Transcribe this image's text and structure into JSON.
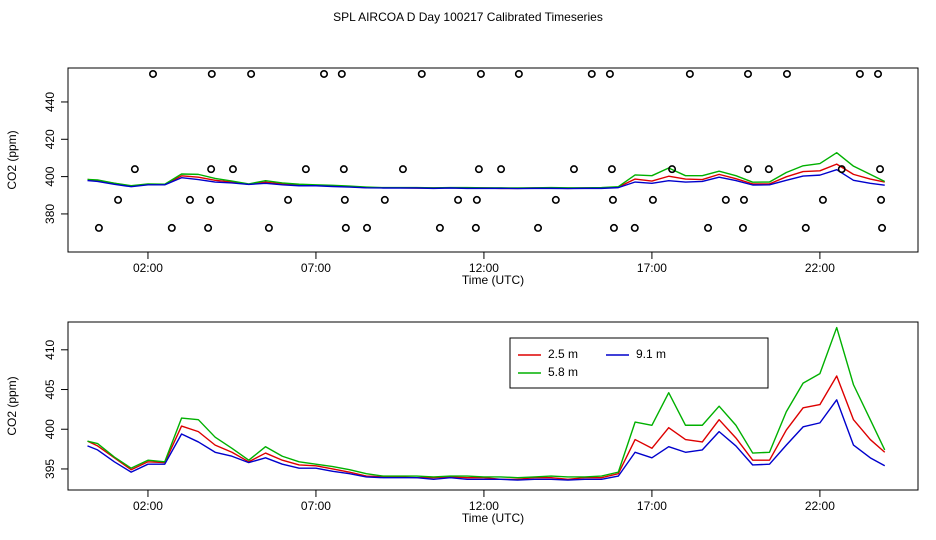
{
  "chart_data": [
    {
      "type": "line",
      "title": "SPL AIRCOA D  Day 100217  Calibrated Timeseries",
      "x_label": "Time (UTC)",
      "y_label": "CO2 (ppm)",
      "xlim": [
        -0.38,
        24.92
      ],
      "ylim": [
        359.6,
        458.2
      ],
      "xticks": [
        {
          "value": 2,
          "label": "02:00"
        },
        {
          "value": 7,
          "label": "07:00"
        },
        {
          "value": 12,
          "label": "12:00"
        },
        {
          "value": 17,
          "label": "17:00"
        },
        {
          "value": 22,
          "label": "22:00"
        }
      ],
      "yticks": [
        380,
        400,
        420,
        440
      ],
      "x": [
        0.2,
        0.5,
        1,
        1.5,
        2,
        2.5,
        3,
        3.5,
        4,
        4.5,
        5,
        5.5,
        6,
        6.5,
        7,
        7.5,
        8,
        8.5,
        9,
        9.5,
        10,
        10.5,
        11,
        11.5,
        12,
        12.5,
        13,
        13.5,
        14,
        14.5,
        15,
        15.5,
        16,
        16.5,
        17,
        17.5,
        18,
        18.5,
        19,
        19.5,
        20,
        20.5,
        21,
        21.5,
        22,
        22.5,
        23,
        23.5,
        23.93
      ],
      "series": [
        {
          "color": "#dd0000",
          "values": [
            398.5,
            397.9,
            396.4,
            394.9,
            395.9,
            395.8,
            400.4,
            399.7,
            398.0,
            397.1,
            395.9,
            397.0,
            396.1,
            395.5,
            395.4,
            395.0,
            394.6,
            394.1,
            394.0,
            394.0,
            393.9,
            393.9,
            394.0,
            393.9,
            393.9,
            393.7,
            393.7,
            393.9,
            393.9,
            393.7,
            393.9,
            393.9,
            394.4,
            398.7,
            397.6,
            400.2,
            398.7,
            398.4,
            401.2,
            398.9,
            396.1,
            396.1,
            399.9,
            402.7,
            403.1,
            406.7,
            401.2,
            398.7,
            397.1
          ]
        },
        {
          "color": "#00b000",
          "values": [
            398.5,
            398.2,
            396.5,
            395.1,
            396.1,
            395.9,
            401.4,
            401.2,
            399.0,
            397.6,
            396.1,
            397.8,
            396.6,
            395.9,
            395.6,
            395.3,
            394.9,
            394.4,
            394.1,
            394.1,
            394.1,
            394.0,
            394.1,
            394.1,
            394.0,
            394.0,
            393.9,
            394.0,
            394.1,
            394.0,
            394.0,
            394.1,
            394.6,
            400.9,
            400.5,
            404.6,
            400.5,
            400.5,
            402.9,
            400.5,
            397.0,
            397.1,
            402.2,
            405.8,
            407.0,
            412.8,
            405.6,
            401.2,
            397.4
          ]
        },
        {
          "color": "#0000cc",
          "values": [
            397.9,
            397.4,
            395.9,
            394.6,
            395.6,
            395.6,
            399.4,
            398.4,
            397.1,
            396.6,
            395.8,
            396.4,
            395.6,
            395.1,
            395.1,
            394.7,
            394.4,
            394.0,
            393.9,
            393.9,
            393.9,
            393.7,
            393.9,
            393.7,
            393.7,
            393.7,
            393.6,
            393.7,
            393.7,
            393.6,
            393.7,
            393.7,
            394.1,
            397.1,
            396.4,
            397.8,
            397.1,
            397.4,
            399.7,
            397.9,
            395.5,
            395.6,
            398.0,
            400.3,
            400.8,
            403.7,
            398.0,
            396.4,
            395.4
          ]
        },
        {
          "color": "#000000",
          "marker": "circle",
          "x": [
            2.15,
            3.9,
            5.07,
            7.24,
            7.77,
            10.15,
            11.91,
            13.04,
            15.21,
            15.75,
            18.13,
            19.86,
            21.02,
            23.19,
            23.73,
            1.61,
            3.88,
            4.53,
            6.7,
            7.83,
            9.59,
            11.85,
            12.51,
            14.68,
            15.81,
            17.6,
            19.86,
            20.48,
            22.65,
            23.79,
            1.11,
            3.25,
            3.85,
            6.17,
            7.86,
            9.05,
            11.23,
            11.79,
            14.14,
            15.84,
            17.03,
            19.2,
            19.74,
            22.09,
            23.82,
            0.54,
            2.71,
            3.79,
            5.6,
            7.89,
            8.52,
            10.69,
            11.76,
            13.61,
            15.87,
            16.49,
            18.67,
            19.71,
            21.58,
            23.85
          ],
          "values": [
            455,
            455,
            455,
            455,
            455,
            455,
            455,
            455,
            455,
            455,
            455,
            455,
            455,
            455,
            455,
            404,
            404,
            404,
            404,
            404,
            404,
            404,
            404,
            404,
            404,
            404,
            404,
            404,
            404,
            404,
            387.5,
            387.5,
            387.5,
            387.5,
            387.5,
            387.5,
            387.5,
            387.5,
            387.5,
            387.5,
            387.5,
            387.5,
            387.5,
            387.5,
            387.5,
            372.5,
            372.5,
            372.5,
            372.5,
            372.5,
            372.5,
            372.5,
            372.5,
            372.5,
            372.5,
            372.5,
            372.5,
            372.5,
            372.5,
            372.5
          ]
        }
      ]
    },
    {
      "type": "line",
      "x_label": "Time (UTC)",
      "y_label": "CO2 (ppm)",
      "xlim": [
        -0.38,
        24.92
      ],
      "ylim": [
        392.35,
        413.5
      ],
      "xticks": [
        {
          "value": 2,
          "label": "02:00"
        },
        {
          "value": 7,
          "label": "07:00"
        },
        {
          "value": 12,
          "label": "12:00"
        },
        {
          "value": 17,
          "label": "17:00"
        },
        {
          "value": 22,
          "label": "22:00"
        }
      ],
      "yticks": [
        395,
        400,
        405,
        410
      ],
      "legend": "top",
      "x": [
        0.2,
        0.5,
        1,
        1.5,
        2,
        2.5,
        3,
        3.5,
        4,
        4.5,
        5,
        5.5,
        6,
        6.5,
        7,
        7.5,
        8,
        8.5,
        9,
        9.5,
        10,
        10.5,
        11,
        11.5,
        12,
        12.5,
        13,
        13.5,
        14,
        14.5,
        15,
        15.5,
        16,
        16.5,
        17,
        17.5,
        18,
        18.5,
        19,
        19.5,
        20,
        20.5,
        21,
        21.5,
        22,
        22.5,
        23,
        23.5,
        23.93
      ],
      "series": [
        {
          "name": "2.5 m",
          "color": "#dd0000",
          "values": [
            398.5,
            397.9,
            396.4,
            394.9,
            395.9,
            395.8,
            400.4,
            399.7,
            398.0,
            397.1,
            395.9,
            397.0,
            396.1,
            395.5,
            395.4,
            395.0,
            394.6,
            394.1,
            394.0,
            394.0,
            393.9,
            393.9,
            394.0,
            393.9,
            393.9,
            393.7,
            393.7,
            393.9,
            393.9,
            393.7,
            393.9,
            393.9,
            394.4,
            398.7,
            397.6,
            400.2,
            398.7,
            398.4,
            401.2,
            398.9,
            396.1,
            396.1,
            399.9,
            402.7,
            403.1,
            406.7,
            401.2,
            398.7,
            397.1
          ]
        },
        {
          "name": "5.8 m",
          "color": "#00b000",
          "values": [
            398.5,
            398.2,
            396.5,
            395.1,
            396.1,
            395.9,
            401.4,
            401.2,
            399.0,
            397.6,
            396.1,
            397.8,
            396.6,
            395.9,
            395.6,
            395.3,
            394.9,
            394.4,
            394.1,
            394.1,
            394.1,
            394.0,
            394.1,
            394.1,
            394.0,
            394.0,
            393.9,
            394.0,
            394.1,
            394.0,
            394.0,
            394.1,
            394.6,
            400.9,
            400.5,
            404.6,
            400.5,
            400.5,
            402.9,
            400.5,
            397.0,
            397.1,
            402.2,
            405.8,
            407.0,
            412.8,
            405.6,
            401.2,
            397.4
          ]
        },
        {
          "name": "9.1 m",
          "color": "#0000cc",
          "values": [
            397.9,
            397.4,
            395.9,
            394.6,
            395.6,
            395.6,
            399.4,
            398.4,
            397.1,
            396.6,
            395.8,
            396.4,
            395.6,
            395.1,
            395.1,
            394.7,
            394.4,
            394.0,
            393.9,
            393.9,
            393.9,
            393.7,
            393.9,
            393.7,
            393.7,
            393.7,
            393.6,
            393.7,
            393.7,
            393.6,
            393.7,
            393.7,
            394.1,
            397.1,
            396.4,
            397.8,
            397.1,
            397.4,
            399.7,
            397.9,
            395.5,
            395.6,
            398.0,
            400.3,
            400.8,
            403.7,
            398.0,
            396.4,
            395.4
          ]
        }
      ]
    }
  ]
}
